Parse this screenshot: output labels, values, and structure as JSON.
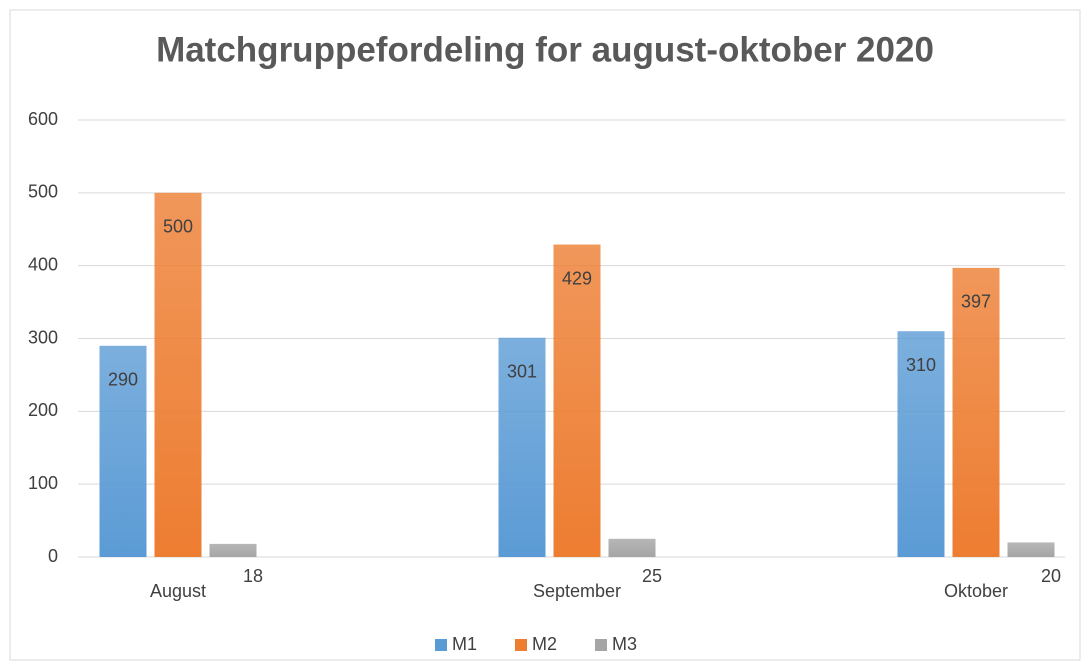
{
  "chart_data": {
    "type": "bar",
    "title": "Matchgruppefordeling for august-oktober 2020",
    "categories": [
      "August",
      "September",
      "Oktober"
    ],
    "series": [
      {
        "name": "M1",
        "color": "#5b9bd5",
        "values": [
          290,
          301,
          310
        ]
      },
      {
        "name": "M2",
        "color": "#ed7d31",
        "values": [
          500,
          429,
          397
        ]
      },
      {
        "name": "M3",
        "color": "#a5a5a5",
        "values": [
          18,
          25,
          20
        ]
      }
    ],
    "ylim": [
      0,
      600
    ],
    "yticks": [
      0,
      100,
      200,
      300,
      400,
      500,
      600
    ],
    "grid": true,
    "legend": "bottom"
  }
}
